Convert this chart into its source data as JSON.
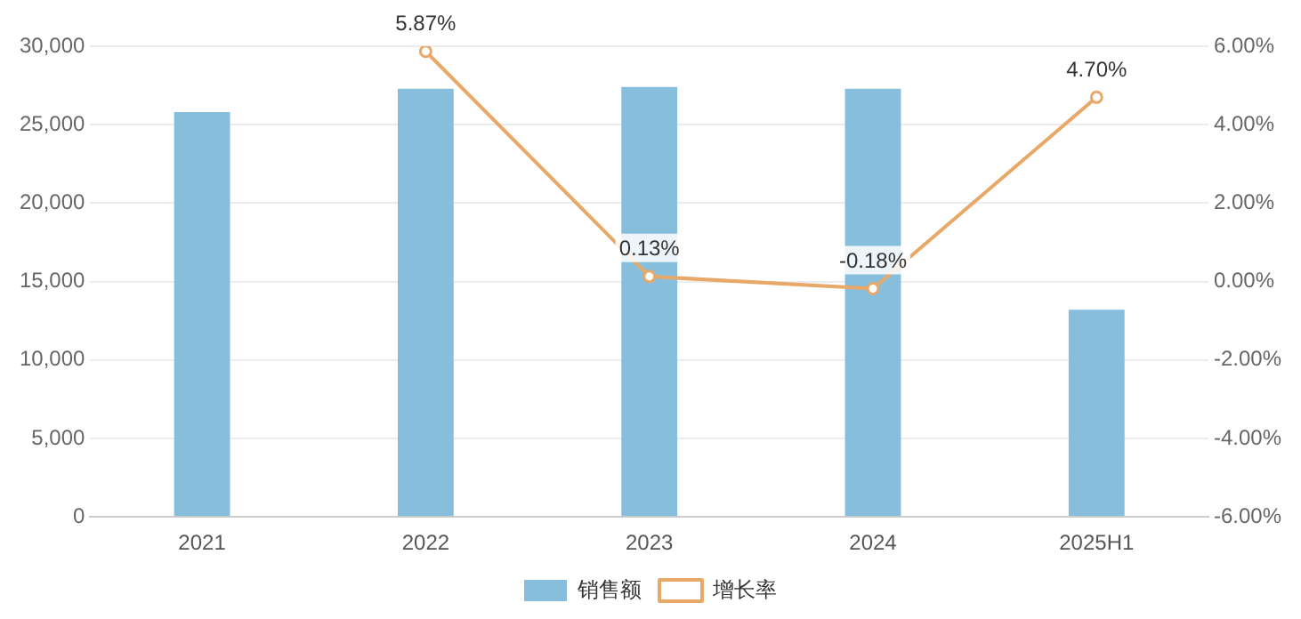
{
  "chart_data": {
    "type": "bar",
    "categories": [
      "2021",
      "2022",
      "2023",
      "2024",
      "2025H1"
    ],
    "series": [
      {
        "name": "销售额",
        "color": "#86bedc",
        "values": [
          25800,
          27300,
          27400,
          27300,
          13200
        ]
      },
      {
        "name": "增长率",
        "type": "line",
        "axis": "y2",
        "color": "#e8a868",
        "values": [
          null,
          5.87,
          0.13,
          -0.18,
          4.7
        ],
        "value_labels": [
          null,
          "5.87%",
          "0.13%",
          "-0.18%",
          "4.70%"
        ]
      }
    ],
    "ylim": [
      0,
      30000
    ],
    "yticks": [
      {
        "value": 0,
        "label": "0"
      },
      {
        "value": 5000,
        "label": "5,000"
      },
      {
        "value": 10000,
        "label": "10,000"
      },
      {
        "value": 15000,
        "label": "15,000"
      },
      {
        "value": 20000,
        "label": "20,000"
      },
      {
        "value": 25000,
        "label": "25,000"
      },
      {
        "value": 30000,
        "label": "30,000"
      }
    ],
    "y2lim": [
      -6,
      6
    ],
    "y2ticks": [
      {
        "value": -6,
        "label": "-6.00%"
      },
      {
        "value": -4,
        "label": "-4.00%"
      },
      {
        "value": -2,
        "label": "-2.00%"
      },
      {
        "value": 0,
        "label": "0.00%"
      },
      {
        "value": 2,
        "label": "2.00%"
      },
      {
        "value": 4,
        "label": "4.00%"
      },
      {
        "value": 6,
        "label": "6.00%"
      }
    ],
    "grid": "y",
    "legend": "bottom",
    "marker": "circle",
    "line_style": "solid"
  }
}
